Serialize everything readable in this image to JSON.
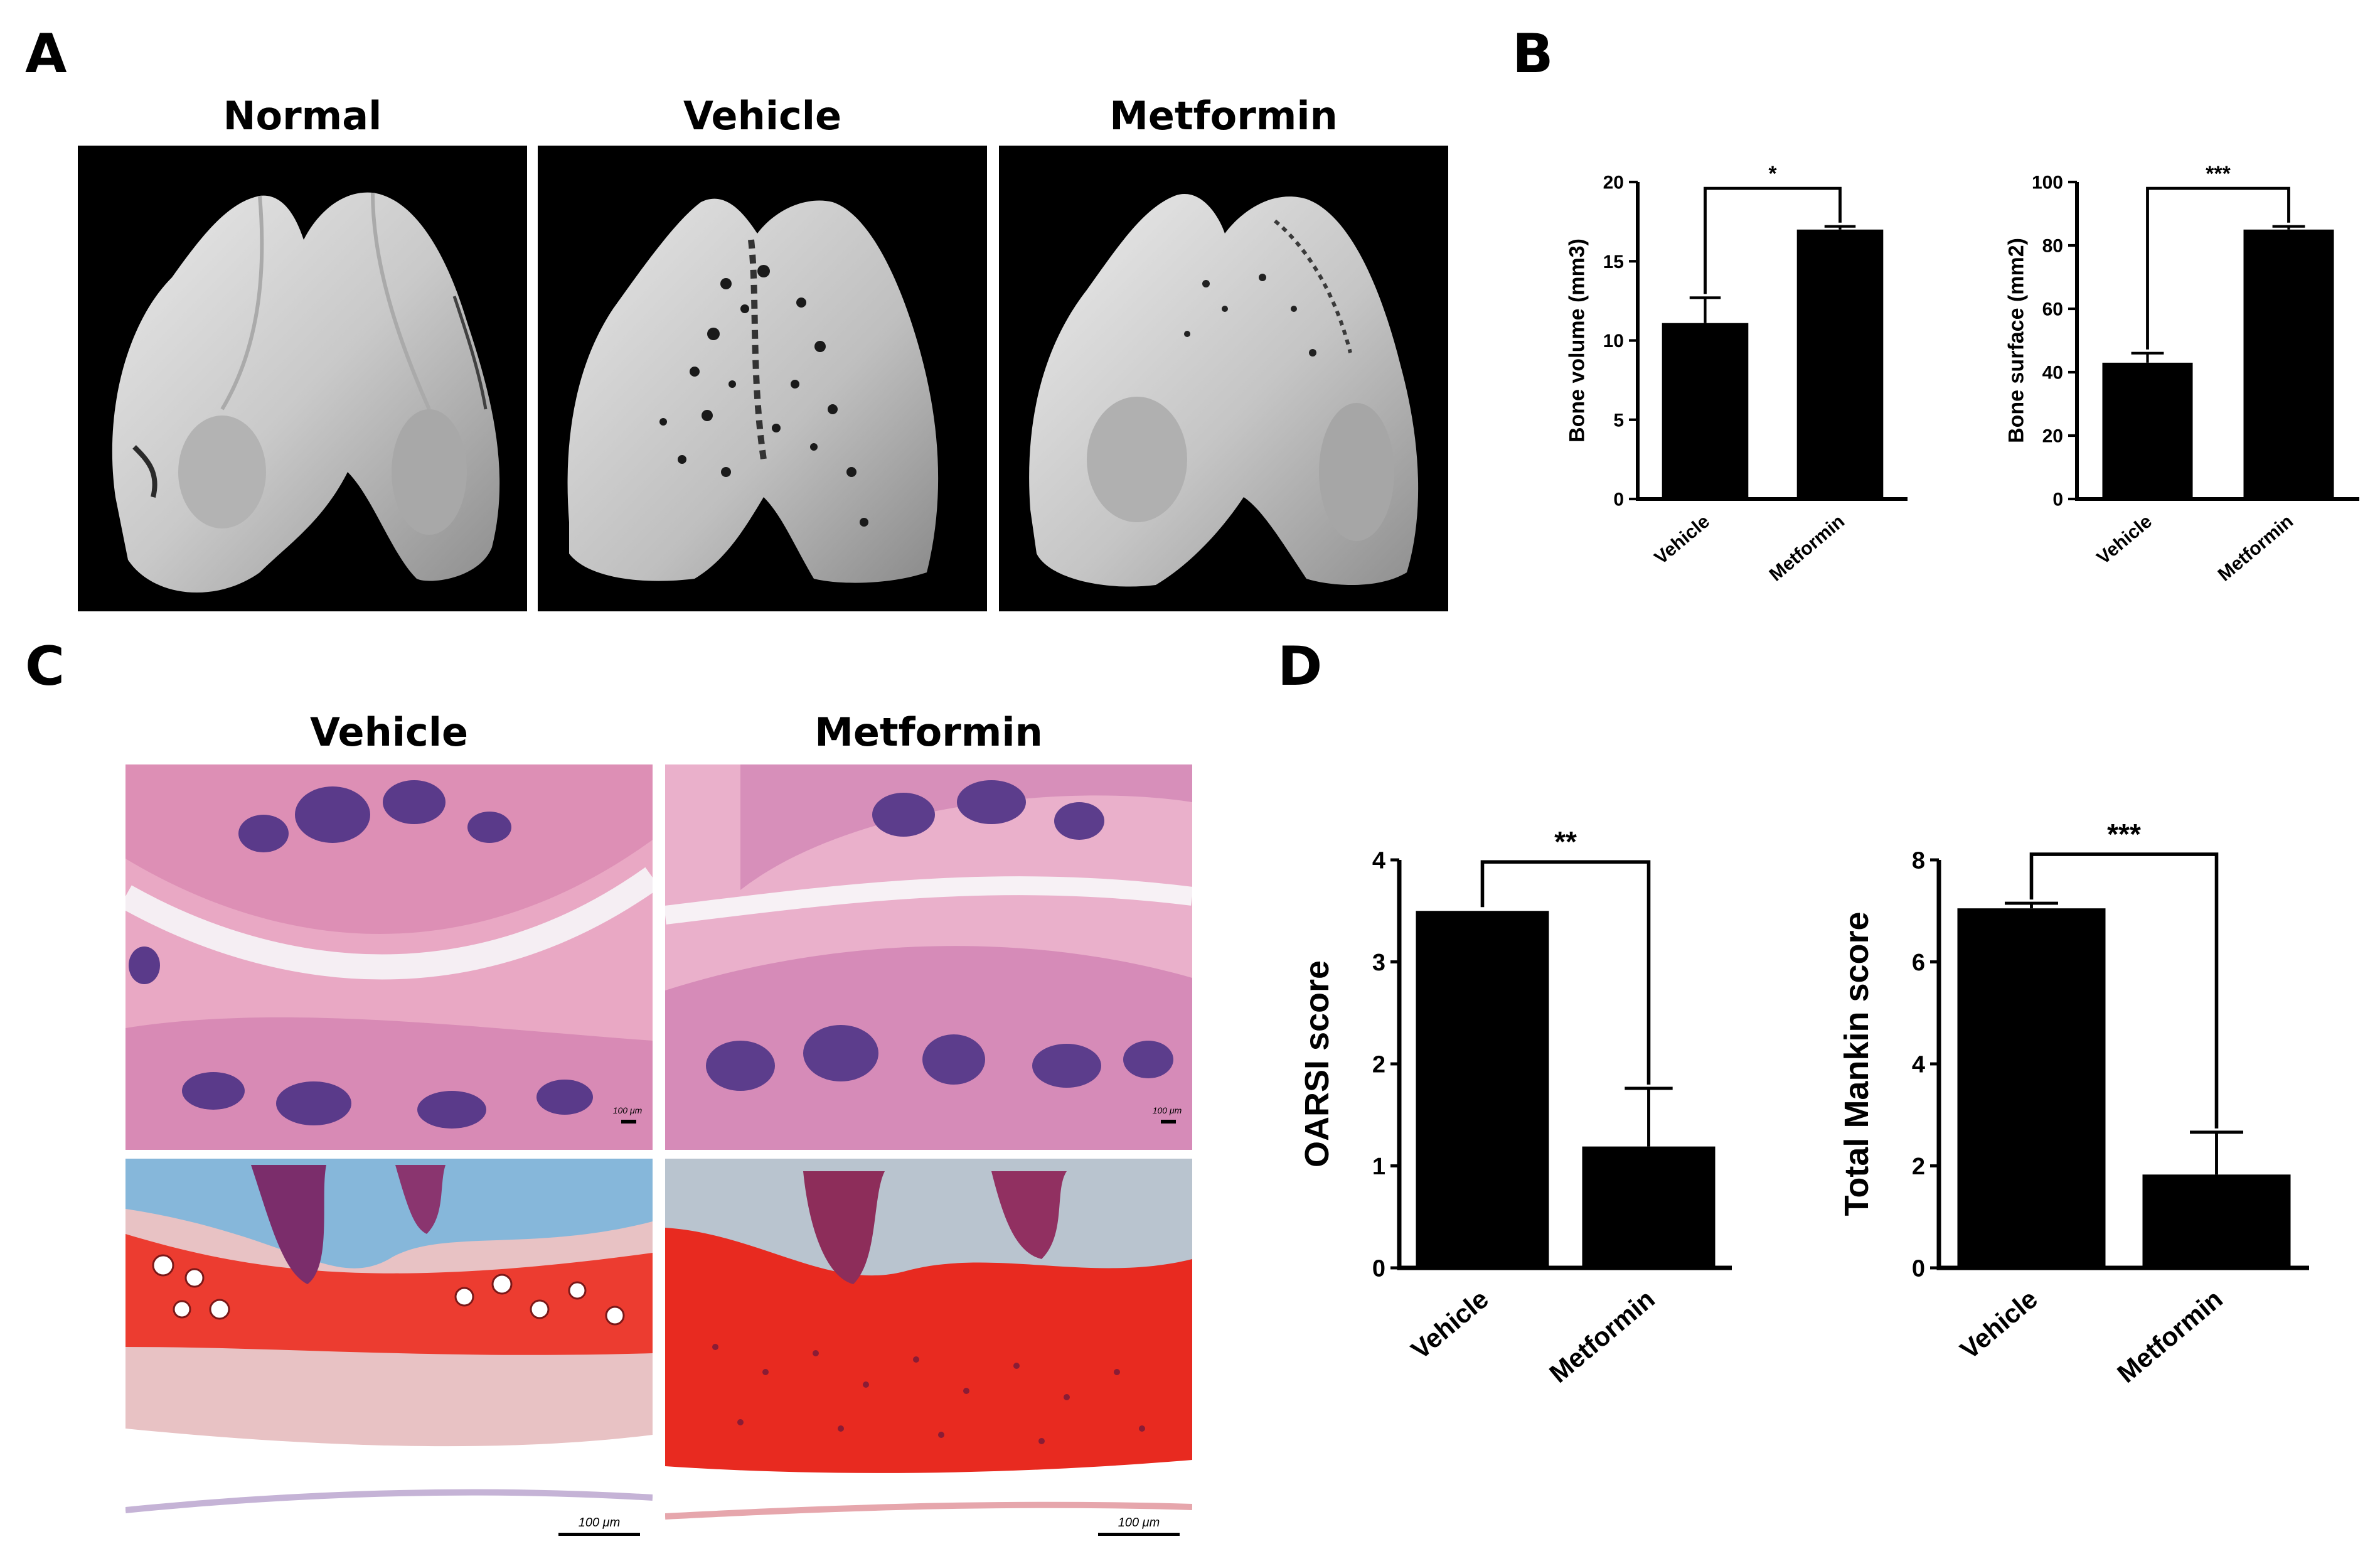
{
  "panels": {
    "a": {
      "letter": "A",
      "images": [
        {
          "title": "Normal"
        },
        {
          "title": "Vehicle"
        },
        {
          "title": "Metformin"
        }
      ]
    },
    "b": {
      "letter": "B"
    },
    "c": {
      "letter": "C",
      "images": [
        {
          "title": "Vehicle"
        },
        {
          "title": "Metformin"
        }
      ],
      "scale_label": "100 μm"
    },
    "d": {
      "letter": "D"
    }
  },
  "colors": {
    "bar": "#000000",
    "background": "#ffffff",
    "ct_background": "#000000"
  },
  "chart_data": [
    {
      "id": "bone-volume",
      "type": "bar",
      "categories": [
        "Vehicle",
        "Metformin"
      ],
      "values": [
        11.1,
        17.0
      ],
      "errors": [
        1.6,
        0.2
      ],
      "ylabel": "Bone volume (mm3)",
      "ylim": [
        0,
        20
      ],
      "yticks": [
        0,
        5,
        10,
        15,
        20
      ],
      "significance": "*",
      "grid": false
    },
    {
      "id": "bone-surface",
      "type": "bar",
      "categories": [
        "Vehicle",
        "Metformin"
      ],
      "values": [
        43,
        85
      ],
      "errors": [
        3,
        1
      ],
      "ylabel": "Bone surface (mm2)",
      "ylim": [
        0,
        100
      ],
      "yticks": [
        0,
        20,
        40,
        60,
        80,
        100
      ],
      "significance": "***",
      "grid": false
    },
    {
      "id": "oarsi-score",
      "type": "bar",
      "categories": [
        "Vehicle",
        "Metformin"
      ],
      "values": [
        3.5,
        1.19
      ],
      "errors": [
        0,
        0.57
      ],
      "ylabel": "OARSI score",
      "ylim": [
        0,
        4
      ],
      "yticks": [
        0,
        1,
        2,
        3,
        4
      ],
      "significance": "**",
      "grid": false
    },
    {
      "id": "total-mankin-score",
      "type": "bar",
      "categories": [
        "Vehicle",
        "Metformin"
      ],
      "values": [
        7.05,
        1.83
      ],
      "errors": [
        0.1,
        0.83
      ],
      "ylabel": "Total Mankin score",
      "ylim": [
        0,
        8
      ],
      "yticks": [
        0,
        2,
        4,
        6,
        8
      ],
      "significance": "***",
      "grid": false
    }
  ]
}
